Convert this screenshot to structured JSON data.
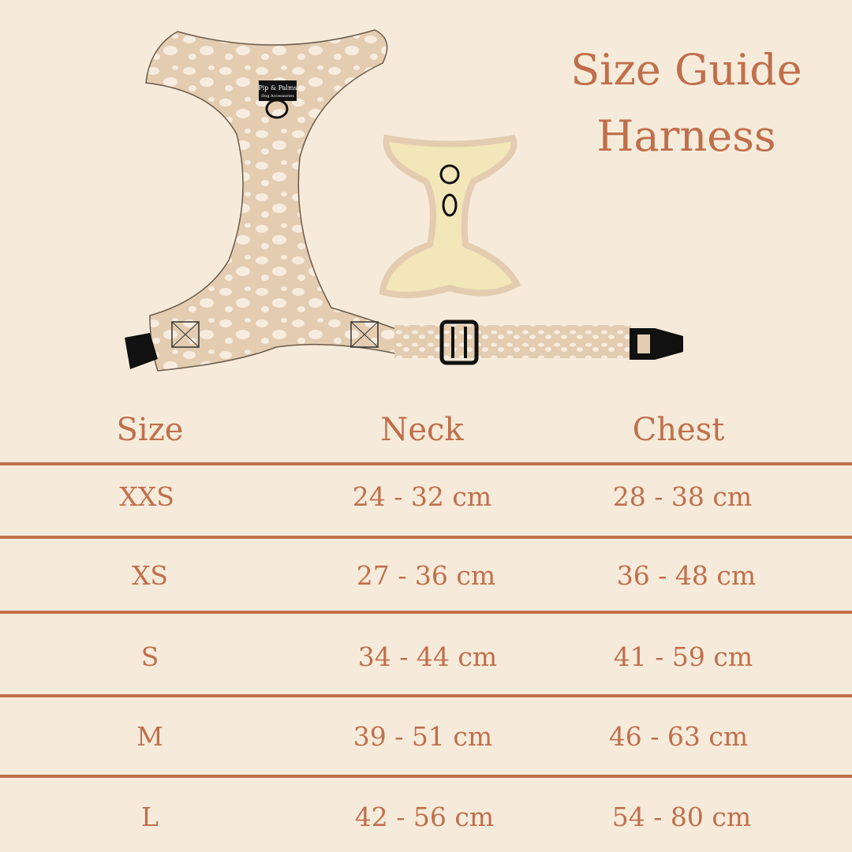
{
  "title": {
    "line1": "Size Guide",
    "line2": "Harness"
  },
  "logo": {
    "brand": "Pip & Palms",
    "sub": "Dog Accessories"
  },
  "colors": {
    "background": "#f6ebdb",
    "text": "#c06f4b",
    "rule": "#c0704a",
    "harness": "#e3ccb0",
    "spots": "#f7ece0",
    "small_harness": "#f3e6b8"
  },
  "table": {
    "headers": [
      "Size",
      "Neck",
      "Chest"
    ],
    "rows": [
      [
        "XXS",
        "24 - 32 cm",
        "28 - 38 cm"
      ],
      [
        "XS",
        "27 - 36 cm",
        "36 - 48 cm"
      ],
      [
        "S",
        "34 - 44 cm",
        "41 - 59 cm"
      ],
      [
        "M",
        "39 - 51 cm",
        "46 - 63 cm"
      ],
      [
        "L",
        "42 - 56 cm",
        "54 - 80 cm"
      ]
    ]
  }
}
